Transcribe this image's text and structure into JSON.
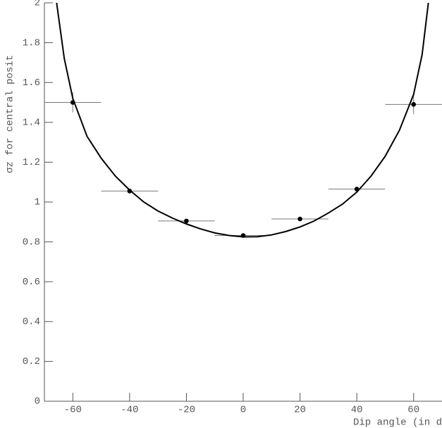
{
  "chart_data": {
    "type": "scatter",
    "xlabel": "Dip angle (in d",
    "ylabel": "σz for central posit",
    "xlim": [
      -70,
      70
    ],
    "ylim": [
      0,
      2
    ],
    "xticks": [
      -60,
      -40,
      -20,
      0,
      20,
      40,
      60
    ],
    "yticks": [
      0,
      0.2,
      0.4,
      0.6,
      0.8,
      1,
      1.2,
      1.4,
      1.6,
      1.8,
      2
    ],
    "series": [
      {
        "color": "#000000",
        "x": [
          -60,
          -40,
          -20,
          0,
          20,
          40,
          60
        ],
        "values": [
          1.5,
          1.055,
          0.905,
          0.832,
          0.915,
          1.065,
          1.49
        ],
        "x_errors": [
          10,
          10,
          10,
          10,
          10,
          10,
          10
        ],
        "y_errors": [
          0.05,
          0.01,
          0.008,
          0.006,
          0.008,
          0.01,
          0.05
        ]
      }
    ],
    "fit": {
      "color": "#000000",
      "x": [
        -65.7,
        -63,
        -60,
        -55,
        -50,
        -45,
        -40,
        -35,
        -30,
        -25,
        -20,
        -15,
        -10,
        -5,
        0,
        5,
        10,
        15,
        20,
        25,
        30,
        35,
        40,
        45,
        50,
        55,
        60,
        63,
        65.2
      ],
      "values": [
        2.0,
        1.72,
        1.52,
        1.33,
        1.22,
        1.13,
        1.06,
        1.0,
        0.955,
        0.92,
        0.89,
        0.865,
        0.845,
        0.832,
        0.825,
        0.826,
        0.835,
        0.852,
        0.875,
        0.905,
        0.945,
        0.99,
        1.05,
        1.13,
        1.23,
        1.36,
        1.54,
        1.74,
        2.0
      ]
    }
  }
}
